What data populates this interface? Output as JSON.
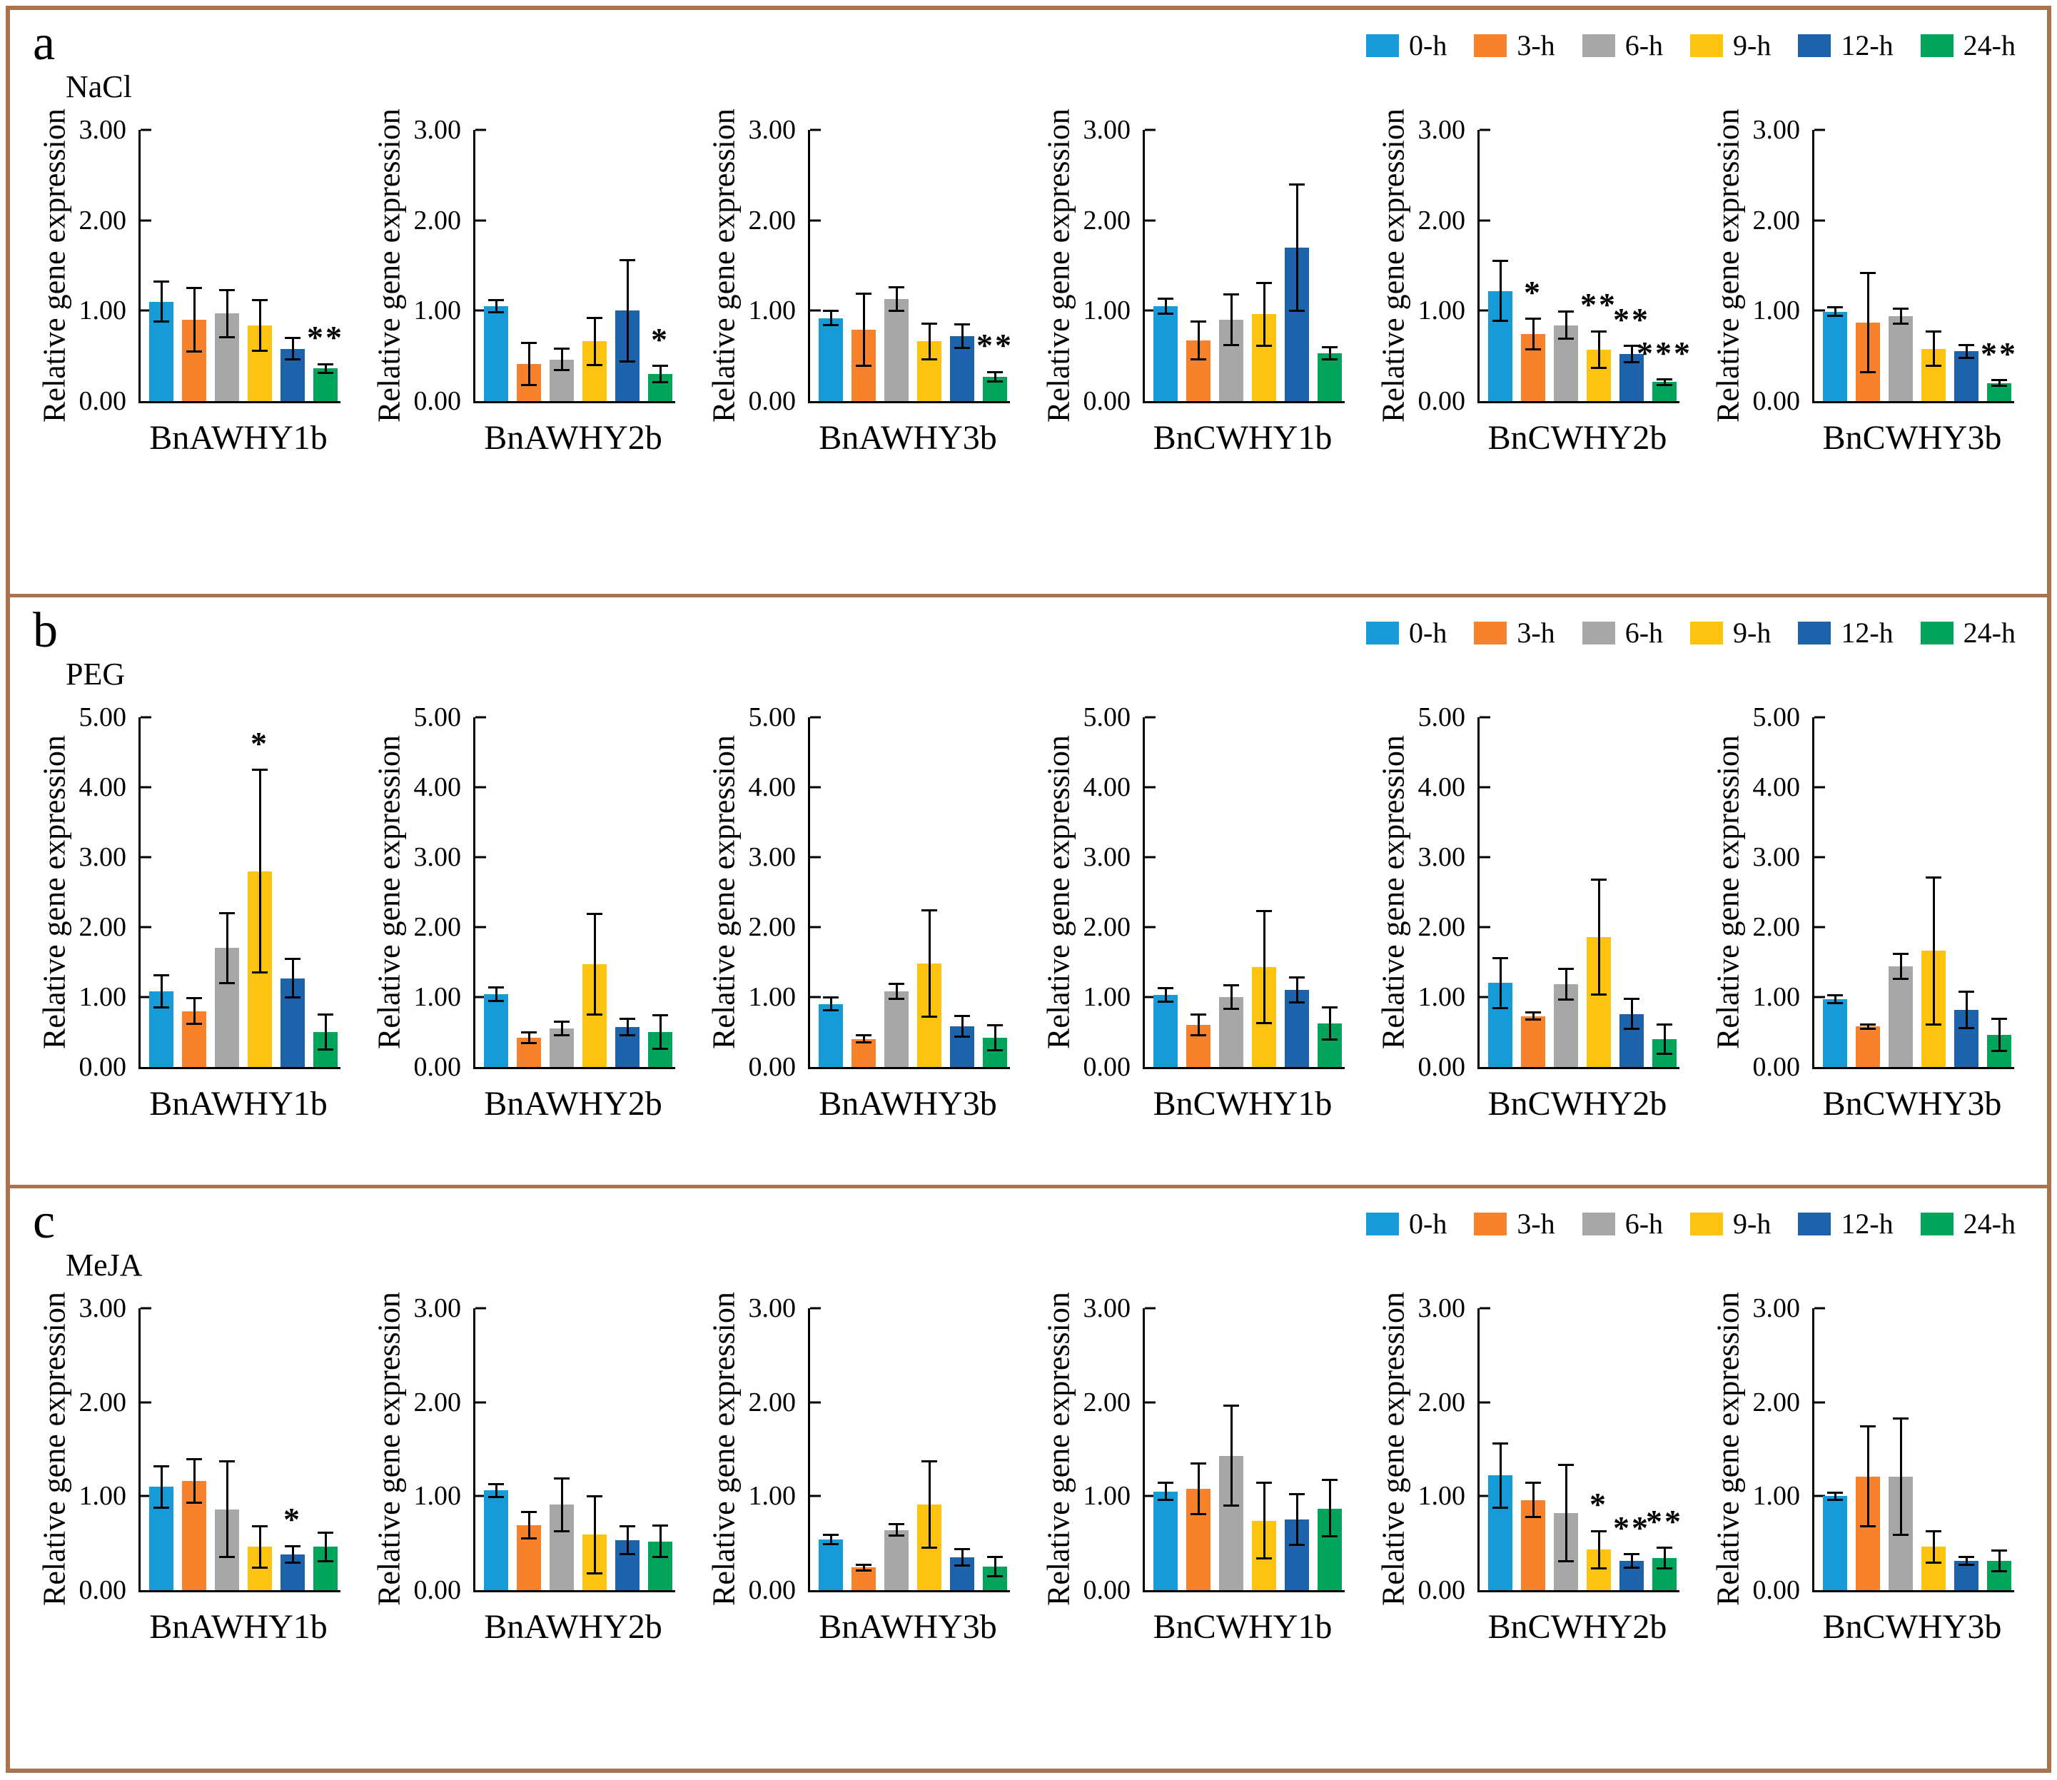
{
  "figure": {
    "frame_color": "#A9734E",
    "background": "#FFFFFF"
  },
  "chart_data": {
    "type": "bar",
    "title": "",
    "ylabel": "Relative gene expression",
    "legend_position": "top-right",
    "grid": false,
    "legend": [
      {
        "label": "0-h",
        "color": "#149BD8"
      },
      {
        "label": "3-h",
        "color": "#F8822B"
      },
      {
        "label": "6-h",
        "color": "#A7A7A7"
      },
      {
        "label": "9-h",
        "color": "#FDC30F"
      },
      {
        "label": "12-h",
        "color": "#1C63AC"
      },
      {
        "label": "24-h",
        "color": "#00A45A"
      }
    ],
    "panels": [
      {
        "letter": "a",
        "treatment": "NaCl",
        "ylim": [
          0,
          3
        ],
        "ytick_step": 1.0,
        "charts": [
          {
            "gene": "BnAWHY1b",
            "values": [
              1.1,
              0.9,
              0.97,
              0.84,
              0.58,
              0.36
            ],
            "errors": [
              0.22,
              0.35,
              0.26,
              0.28,
              0.12,
              0.05
            ],
            "sig": [
              "",
              "",
              "",
              "",
              "",
              "**"
            ]
          },
          {
            "gene": "BnAWHY2b",
            "values": [
              1.05,
              0.41,
              0.46,
              0.66,
              1.0,
              0.3
            ],
            "errors": [
              0.07,
              0.23,
              0.12,
              0.26,
              0.56,
              0.09
            ],
            "sig": [
              "",
              "",
              "",
              "",
              "",
              "*"
            ]
          },
          {
            "gene": "BnAWHY3b",
            "values": [
              0.92,
              0.79,
              1.13,
              0.66,
              0.72,
              0.27
            ],
            "errors": [
              0.08,
              0.4,
              0.13,
              0.2,
              0.13,
              0.05
            ],
            "sig": [
              "",
              "",
              "",
              "",
              "",
              "**"
            ]
          },
          {
            "gene": "BnCWHY1b",
            "values": [
              1.05,
              0.67,
              0.9,
              0.96,
              1.7,
              0.53
            ],
            "errors": [
              0.08,
              0.21,
              0.28,
              0.35,
              0.7,
              0.07
            ],
            "sig": [
              "",
              "",
              "",
              "",
              "",
              ""
            ]
          },
          {
            "gene": "BnCWHY2b",
            "values": [
              1.22,
              0.74,
              0.84,
              0.57,
              0.52,
              0.21
            ],
            "errors": [
              0.33,
              0.17,
              0.15,
              0.2,
              0.09,
              0.03
            ],
            "sig": [
              "",
              "*",
              "",
              "**",
              "**",
              "***"
            ]
          },
          {
            "gene": "BnCWHY3b",
            "values": [
              0.99,
              0.87,
              0.94,
              0.58,
              0.55,
              0.2
            ],
            "errors": [
              0.05,
              0.55,
              0.08,
              0.19,
              0.07,
              0.03
            ],
            "sig": [
              "",
              "",
              "",
              "",
              "",
              "**"
            ]
          }
        ]
      },
      {
        "letter": "b",
        "treatment": "PEG",
        "ylim": [
          0,
          5
        ],
        "ytick_step": 1.0,
        "charts": [
          {
            "gene": "BnAWHY1b",
            "values": [
              1.08,
              0.8,
              1.7,
              2.8,
              1.27,
              0.5
            ],
            "errors": [
              0.23,
              0.18,
              0.5,
              1.45,
              0.28,
              0.25
            ],
            "sig": [
              "",
              "",
              "",
              "*",
              "",
              ""
            ]
          },
          {
            "gene": "BnAWHY2b",
            "values": [
              1.04,
              0.42,
              0.55,
              1.47,
              0.57,
              0.5
            ],
            "errors": [
              0.1,
              0.08,
              0.1,
              0.72,
              0.12,
              0.24
            ],
            "sig": [
              "",
              "",
              "",
              "",
              "",
              ""
            ]
          },
          {
            "gene": "BnAWHY3b",
            "values": [
              0.9,
              0.4,
              1.08,
              1.48,
              0.58,
              0.42
            ],
            "errors": [
              0.09,
              0.05,
              0.11,
              0.76,
              0.15,
              0.18
            ],
            "sig": [
              "",
              "",
              "",
              "",
              "",
              ""
            ]
          },
          {
            "gene": "BnCWHY1b",
            "values": [
              1.03,
              0.6,
              1.0,
              1.43,
              1.1,
              0.62
            ],
            "errors": [
              0.1,
              0.15,
              0.17,
              0.8,
              0.18,
              0.23
            ],
            "sig": [
              "",
              "",
              "",
              "",
              "",
              ""
            ]
          },
          {
            "gene": "BnCWHY2b",
            "values": [
              1.2,
              0.73,
              1.18,
              1.86,
              0.76,
              0.4
            ],
            "errors": [
              0.36,
              0.05,
              0.22,
              0.82,
              0.21,
              0.21
            ],
            "sig": [
              "",
              "",
              "",
              "",
              "",
              ""
            ]
          },
          {
            "gene": "BnCWHY3b",
            "values": [
              0.97,
              0.58,
              1.44,
              1.66,
              0.82,
              0.46
            ],
            "errors": [
              0.06,
              0.03,
              0.18,
              1.05,
              0.26,
              0.23
            ],
            "sig": [
              "",
              "",
              "",
              "",
              "",
              ""
            ]
          }
        ]
      },
      {
        "letter": "c",
        "treatment": "MeJA",
        "ylim": [
          0,
          3
        ],
        "ytick_step": 1.0,
        "charts": [
          {
            "gene": "BnAWHY1b",
            "values": [
              1.1,
              1.16,
              0.86,
              0.46,
              0.38,
              0.46
            ],
            "errors": [
              0.22,
              0.23,
              0.51,
              0.22,
              0.09,
              0.15
            ],
            "sig": [
              "",
              "",
              "",
              "",
              "*",
              ""
            ]
          },
          {
            "gene": "BnAWHY2b",
            "values": [
              1.06,
              0.69,
              0.91,
              0.59,
              0.53,
              0.52
            ],
            "errors": [
              0.07,
              0.14,
              0.28,
              0.41,
              0.15,
              0.17
            ],
            "sig": [
              "",
              "",
              "",
              "",
              "",
              ""
            ]
          },
          {
            "gene": "BnAWHY3b",
            "values": [
              0.54,
              0.24,
              0.64,
              0.91,
              0.35,
              0.25
            ],
            "errors": [
              0.05,
              0.03,
              0.06,
              0.46,
              0.09,
              0.1
            ],
            "sig": [
              "",
              "",
              "",
              "",
              "",
              ""
            ]
          },
          {
            "gene": "BnCWHY1b",
            "values": [
              1.05,
              1.08,
              1.43,
              0.74,
              0.75,
              0.87
            ],
            "errors": [
              0.09,
              0.27,
              0.53,
              0.4,
              0.27,
              0.3
            ],
            "sig": [
              "",
              "",
              "",
              "",
              "",
              ""
            ]
          },
          {
            "gene": "BnCWHY2b",
            "values": [
              1.22,
              0.96,
              0.82,
              0.43,
              0.31,
              0.34
            ],
            "errors": [
              0.34,
              0.18,
              0.51,
              0.2,
              0.07,
              0.11
            ],
            "sig": [
              "",
              "",
              "",
              "*",
              "**",
              "**"
            ]
          },
          {
            "gene": "BnCWHY3b",
            "values": [
              1.0,
              1.21,
              1.21,
              0.46,
              0.31,
              0.31
            ],
            "errors": [
              0.04,
              0.53,
              0.62,
              0.17,
              0.04,
              0.11
            ],
            "sig": [
              "",
              "",
              "",
              "",
              "",
              ""
            ]
          }
        ]
      }
    ]
  }
}
